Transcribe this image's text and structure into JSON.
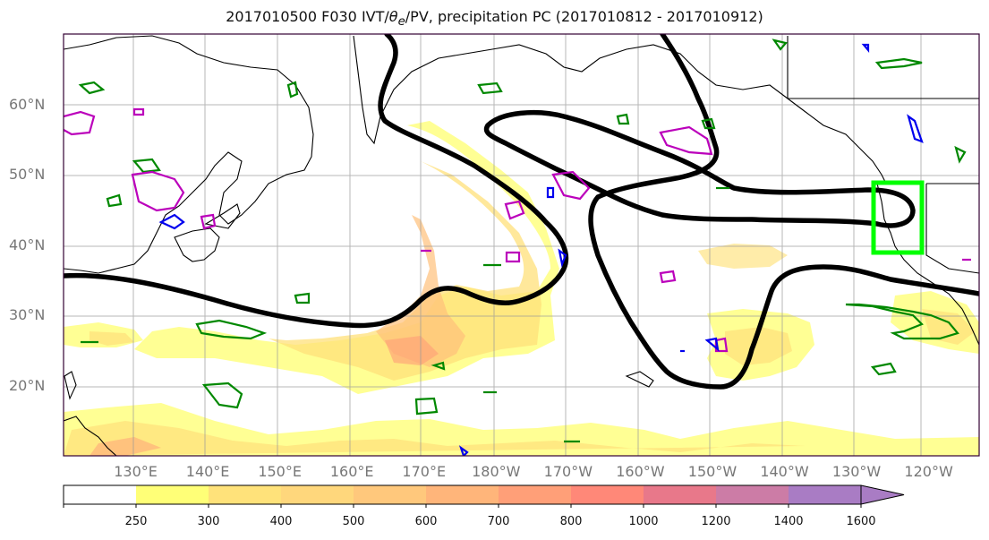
{
  "title": {
    "prefix": "2017010500 F030 IVT/",
    "theta": "θ",
    "theta_sub": "e",
    "suffix": "/PV, precipitation PC (2017010812 - 2017010912)"
  },
  "map": {
    "lat_labels": [
      "60°N",
      "50°N",
      "40°N",
      "30°N",
      "20°N"
    ],
    "lat_values": [
      60,
      50,
      40,
      30,
      20
    ],
    "lon_labels": [
      "130°E",
      "140°E",
      "150°E",
      "160°E",
      "170°E",
      "180°W",
      "170°W",
      "160°W",
      "150°W",
      "140°W",
      "130°W",
      "120°W"
    ],
    "lon_values": [
      130,
      140,
      150,
      160,
      170,
      180,
      190,
      200,
      210,
      220,
      230,
      240
    ],
    "lon_range": [
      120,
      247
    ],
    "lat_range": [
      10,
      70
    ],
    "box_color": "#00ff00",
    "contour_colors": {
      "thick": "#000000",
      "green": "#008800",
      "magenta": "#bb00bb",
      "blue": "#0000ee"
    }
  },
  "colorbar": {
    "labels": [
      "250",
      "300",
      "400",
      "500",
      "600",
      "700",
      "800",
      "1000",
      "1200",
      "1400",
      "1600"
    ],
    "colors": [
      "#ffffff",
      "#ffff77",
      "#ffe27a",
      "#ffd77c",
      "#ffc87c",
      "#ffb57a",
      "#ff9f78",
      "#ff8878",
      "#e8788a",
      "#cc7ca6",
      "#a97cc4"
    ]
  }
}
